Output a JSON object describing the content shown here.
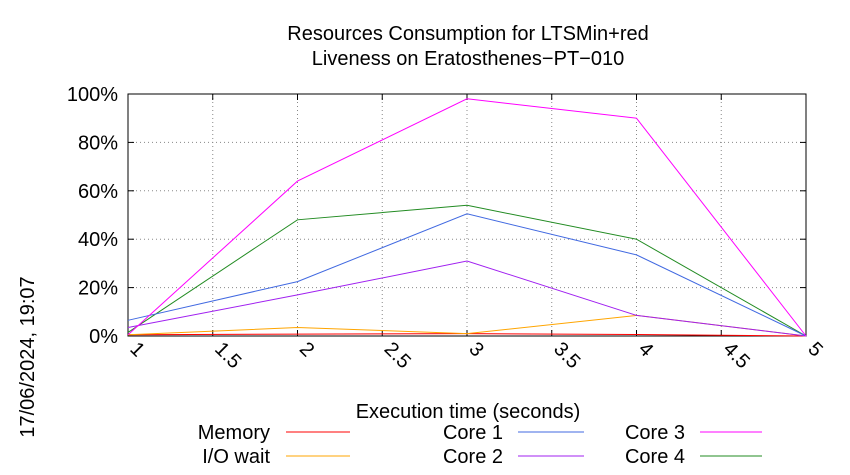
{
  "chart_data": {
    "type": "line",
    "title": [
      "Resources Consumption for LTSMin+red",
      "Liveness on Eratosthenes−PT−010"
    ],
    "xlabel": "Execution time (seconds)",
    "ylabel": "",
    "timestamp": "17/06/2024, 19:07",
    "xlim": [
      1,
      5
    ],
    "ylim": [
      0,
      100
    ],
    "x_ticks": [
      {
        "value": 1,
        "label": "1"
      },
      {
        "value": 1.5,
        "label": "1.5"
      },
      {
        "value": 2,
        "label": "2"
      },
      {
        "value": 2.5,
        "label": "2.5"
      },
      {
        "value": 3,
        "label": "3"
      },
      {
        "value": 3.5,
        "label": "3.5"
      },
      {
        "value": 4,
        "label": "4"
      },
      {
        "value": 4.5,
        "label": "4.5"
      },
      {
        "value": 5,
        "label": "5"
      }
    ],
    "y_ticks": [
      {
        "value": 0,
        "label": "0%"
      },
      {
        "value": 20,
        "label": "20%"
      },
      {
        "value": 40,
        "label": "40%"
      },
      {
        "value": 60,
        "label": "60%"
      },
      {
        "value": 80,
        "label": "80%"
      },
      {
        "value": 100,
        "label": "100%"
      }
    ],
    "grid": true,
    "legend_position": "bottom",
    "x": [
      1,
      2,
      3,
      4,
      5
    ],
    "series": [
      {
        "name": "Memory",
        "color": "#ff0000",
        "values": [
          0.5,
          0.8,
          1.0,
          0.6,
          0
        ]
      },
      {
        "name": "I/O wait",
        "color": "#ffa500",
        "values": [
          0.5,
          3.5,
          1.0,
          8.5,
          0
        ]
      },
      {
        "name": "Core 1",
        "color": "#4169e1",
        "values": [
          6.5,
          22.5,
          50.5,
          33.5,
          0
        ]
      },
      {
        "name": "Core 2",
        "color": "#a020f0",
        "values": [
          3.5,
          17,
          31,
          8.5,
          0
        ]
      },
      {
        "name": "Core 3",
        "color": "#ff00ff",
        "values": [
          0.5,
          64,
          98,
          90,
          0
        ]
      },
      {
        "name": "Core 4",
        "color": "#228b22",
        "values": [
          1.5,
          48,
          54,
          40,
          0
        ]
      }
    ]
  }
}
